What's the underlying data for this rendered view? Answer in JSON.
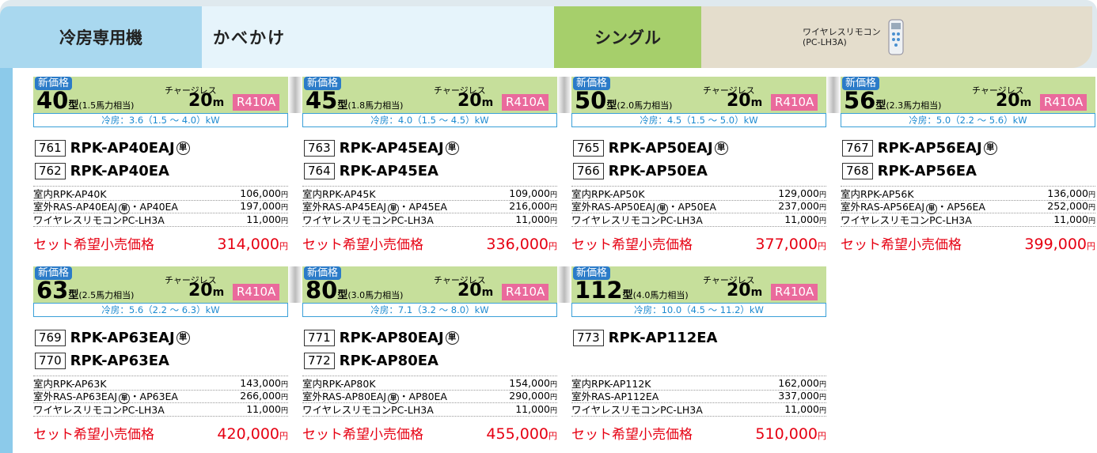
{
  "header": {
    "category": "冷房専用機",
    "style": "かべかけ",
    "type": "シングル",
    "remote_label": "ワイヤレスリモコン",
    "remote_model": "(PC-LH3A)"
  },
  "cards": [
    {
      "badge": "新価格",
      "size": "40",
      "size_unit": "型",
      "hp": "(1.5馬力相当)",
      "chargeless": "チャージレス",
      "length": "20",
      "length_unit": "m",
      "refrigerant": "R410A",
      "cooling": "冷房：3.6（1.5 ～ 4.0）kW",
      "models": [
        {
          "code": "761",
          "name": "RPK-AP40EAJ",
          "mark": "単"
        },
        {
          "code": "762",
          "name": "RPK-AP40EA"
        }
      ],
      "parts": [
        {
          "label": "室内RPK-AP40K",
          "price": "106,000",
          "unit": "円"
        },
        {
          "label": "室外RAS-AP40EAJ",
          "mark": "単",
          "label2": "・AP40EA",
          "price": "197,000",
          "unit": "円"
        },
        {
          "label": "ワイヤレスリモコンPC-LH3A",
          "price": "11,000",
          "unit": "円"
        }
      ],
      "total_label": "セット希望小売価格",
      "total": "314,000",
      "total_unit": "円"
    },
    {
      "badge": "新価格",
      "size": "45",
      "size_unit": "型",
      "hp": "(1.8馬力相当)",
      "chargeless": "チャージレス",
      "length": "20",
      "length_unit": "m",
      "refrigerant": "R410A",
      "cooling": "冷房：4.0（1.5 ～ 4.5）kW",
      "models": [
        {
          "code": "763",
          "name": "RPK-AP45EAJ",
          "mark": "単"
        },
        {
          "code": "764",
          "name": "RPK-AP45EA"
        }
      ],
      "parts": [
        {
          "label": "室内RPK-AP45K",
          "price": "109,000",
          "unit": "円"
        },
        {
          "label": "室外RAS-AP45EAJ",
          "mark": "単",
          "label2": "・AP45EA",
          "price": "216,000",
          "unit": "円"
        },
        {
          "label": "ワイヤレスリモコンPC-LH3A",
          "price": "11,000",
          "unit": "円"
        }
      ],
      "total_label": "セット希望小売価格",
      "total": "336,000",
      "total_unit": "円"
    },
    {
      "badge": "新価格",
      "size": "50",
      "size_unit": "型",
      "hp": "(2.0馬力相当)",
      "chargeless": "チャージレス",
      "length": "20",
      "length_unit": "m",
      "refrigerant": "R410A",
      "cooling": "冷房：4.5（1.5 ～ 5.0）kW",
      "models": [
        {
          "code": "765",
          "name": "RPK-AP50EAJ",
          "mark": "単"
        },
        {
          "code": "766",
          "name": "RPK-AP50EA"
        }
      ],
      "parts": [
        {
          "label": "室内RPK-AP50K",
          "price": "129,000",
          "unit": "円"
        },
        {
          "label": "室外RAS-AP50EAJ",
          "mark": "単",
          "label2": "・AP50EA",
          "price": "237,000",
          "unit": "円"
        },
        {
          "label": "ワイヤレスリモコンPC-LH3A",
          "price": "11,000",
          "unit": "円"
        }
      ],
      "total_label": "セット希望小売価格",
      "total": "377,000",
      "total_unit": "円"
    },
    {
      "badge": "新価格",
      "size": "56",
      "size_unit": "型",
      "hp": "(2.3馬力相当)",
      "chargeless": "チャージレス",
      "length": "20",
      "length_unit": "m",
      "refrigerant": "R410A",
      "cooling": "冷房：5.0（2.2 ～ 5.6）kW",
      "models": [
        {
          "code": "767",
          "name": "RPK-AP56EAJ",
          "mark": "単"
        },
        {
          "code": "768",
          "name": "RPK-AP56EA"
        }
      ],
      "parts": [
        {
          "label": "室内RPK-AP56K",
          "price": "136,000",
          "unit": "円"
        },
        {
          "label": "室外RAS-AP56EAJ",
          "mark": "単",
          "label2": "・AP56EA",
          "price": "252,000",
          "unit": "円"
        },
        {
          "label": "ワイヤレスリモコンPC-LH3A",
          "price": "11,000",
          "unit": "円"
        }
      ],
      "total_label": "セット希望小売価格",
      "total": "399,000",
      "total_unit": "円"
    },
    {
      "badge": "新価格",
      "size": "63",
      "size_unit": "型",
      "hp": "(2.5馬力相当)",
      "chargeless": "チャージレス",
      "length": "20",
      "length_unit": "m",
      "refrigerant": "R410A",
      "cooling": "冷房：5.6（2.2 ～ 6.3）kW",
      "models": [
        {
          "code": "769",
          "name": "RPK-AP63EAJ",
          "mark": "単"
        },
        {
          "code": "770",
          "name": "RPK-AP63EA"
        }
      ],
      "parts": [
        {
          "label": "室内RPK-AP63K",
          "price": "143,000",
          "unit": "円"
        },
        {
          "label": "室外RAS-AP63EAJ",
          "mark": "単",
          "label2": "・AP63EA",
          "price": "266,000",
          "unit": "円"
        },
        {
          "label": "ワイヤレスリモコンPC-LH3A",
          "price": "11,000",
          "unit": "円"
        }
      ],
      "total_label": "セット希望小売価格",
      "total": "420,000",
      "total_unit": "円"
    },
    {
      "badge": "新価格",
      "size": "80",
      "size_unit": "型",
      "hp": "(3.0馬力相当)",
      "chargeless": "チャージレス",
      "length": "20",
      "length_unit": "m",
      "refrigerant": "R410A",
      "cooling": "冷房：7.1（3.2 ～ 8.0）kW",
      "models": [
        {
          "code": "771",
          "name": "RPK-AP80EAJ",
          "mark": "単"
        },
        {
          "code": "772",
          "name": "RPK-AP80EA"
        }
      ],
      "parts": [
        {
          "label": "室内RPK-AP80K",
          "price": "154,000",
          "unit": "円"
        },
        {
          "label": "室外RAS-AP80EAJ",
          "mark": "単",
          "label2": "・AP80EA",
          "price": "290,000",
          "unit": "円"
        },
        {
          "label": "ワイヤレスリモコンPC-LH3A",
          "price": "11,000",
          "unit": "円"
        }
      ],
      "total_label": "セット希望小売価格",
      "total": "455,000",
      "total_unit": "円"
    },
    {
      "badge": "新価格",
      "size": "112",
      "size_unit": "型",
      "hp": "(4.0馬力相当)",
      "chargeless": "チャージレス",
      "length": "20",
      "length_unit": "m",
      "refrigerant": "R410A",
      "cooling": "冷房：10.0（4.5 ～ 11.2）kW",
      "models": [
        {
          "code": "773",
          "name": "RPK-AP112EA"
        }
      ],
      "parts": [
        {
          "label": "室内RPK-AP112K",
          "price": "162,000",
          "unit": "円"
        },
        {
          "label": "室外RAS-AP112EA",
          "price": "337,000",
          "unit": "円"
        },
        {
          "label": "ワイヤレスリモコンPC-LH3A",
          "price": "11,000",
          "unit": "円"
        }
      ],
      "total_label": "セット希望小売価格",
      "total": "510,000",
      "total_unit": "円"
    }
  ]
}
